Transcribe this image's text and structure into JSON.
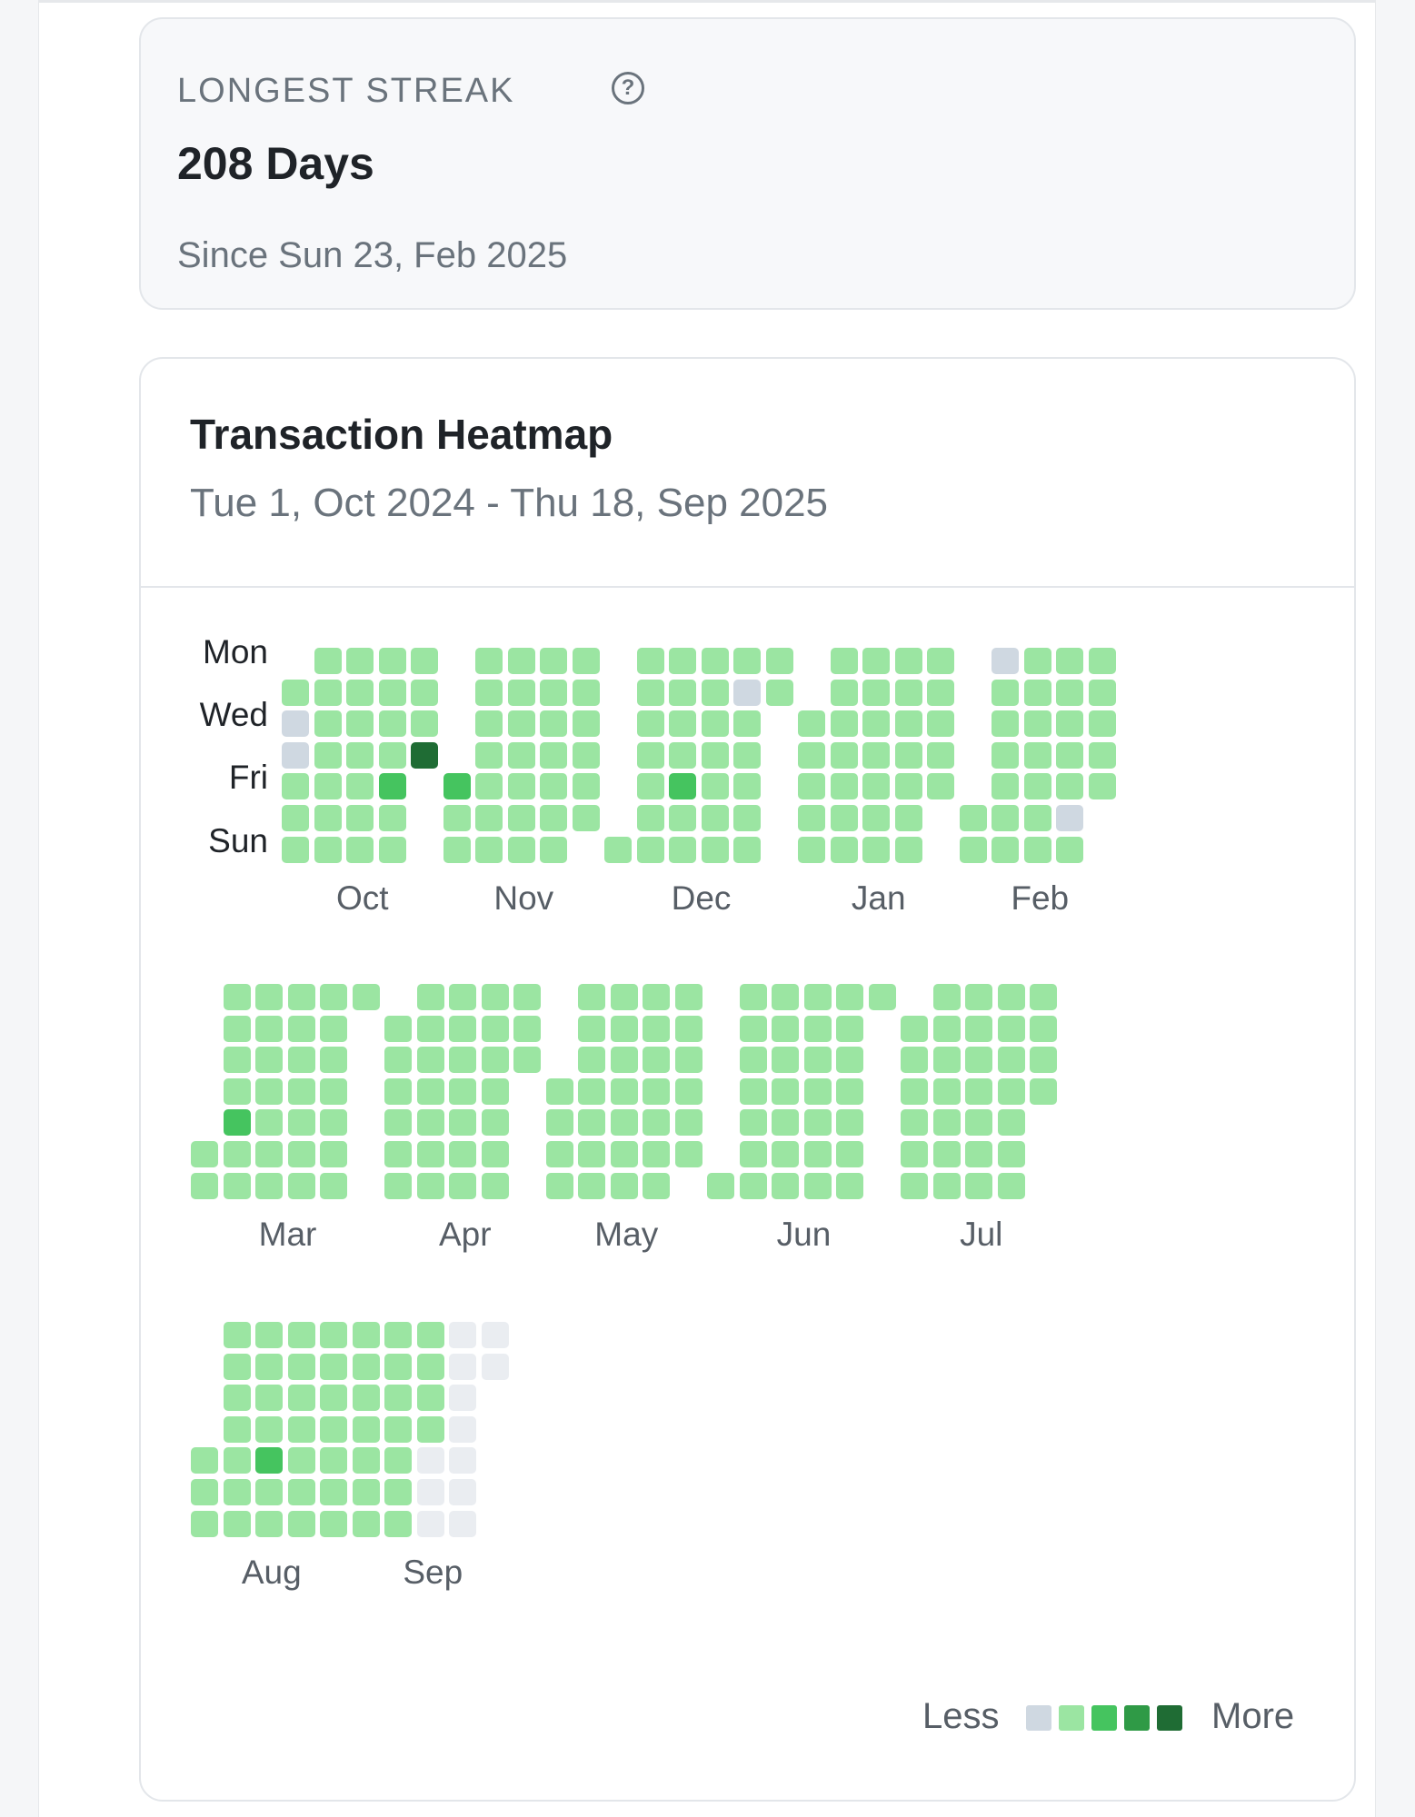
{
  "streak": {
    "label": "LONGEST STREAK",
    "help_icon": "question-circle-icon",
    "value": "208 Days",
    "since": "Since Sun 23, Feb 2025"
  },
  "heatmap": {
    "title": "Transaction Heatmap",
    "range": "Tue 1, Oct 2024 - Thu 18, Sep 2025",
    "day_labels": [
      "Mon",
      "Wed",
      "Fri",
      "Sun"
    ],
    "legend": {
      "less": "Less",
      "more": "More"
    },
    "colors": [
      "#eaedf1",
      "#cfd8e1",
      "#9be5a2",
      "#45c45f",
      "#2f9a46",
      "#1f6c34"
    ],
    "chart_data": {
      "type": "heatmap",
      "levels_note": "levels: 0 = no data, 1 = none, 2..5 = increasing activity",
      "months": [
        {
          "name": "Oct",
          "weeks": [
            [
              null,
              2,
              1,
              1,
              2,
              2,
              2
            ],
            [
              2,
              2,
              2,
              2,
              2,
              2,
              2
            ],
            [
              2,
              2,
              2,
              2,
              2,
              2,
              2
            ],
            [
              2,
              2,
              2,
              2,
              3,
              2,
              2
            ],
            [
              2,
              2,
              2,
              5,
              null,
              null,
              null
            ]
          ]
        },
        {
          "name": "Nov",
          "weeks": [
            [
              null,
              null,
              null,
              null,
              3,
              2,
              2
            ],
            [
              2,
              2,
              2,
              2,
              2,
              2,
              2
            ],
            [
              2,
              2,
              2,
              2,
              2,
              2,
              2
            ],
            [
              2,
              2,
              2,
              2,
              2,
              2,
              2
            ],
            [
              2,
              2,
              2,
              2,
              2,
              2,
              null
            ]
          ]
        },
        {
          "name": "Dec",
          "weeks": [
            [
              null,
              null,
              null,
              null,
              null,
              null,
              2
            ],
            [
              2,
              2,
              2,
              2,
              2,
              2,
              2
            ],
            [
              2,
              2,
              2,
              2,
              3,
              2,
              2
            ],
            [
              2,
              2,
              2,
              2,
              2,
              2,
              2
            ],
            [
              2,
              1,
              2,
              2,
              2,
              2,
              2
            ],
            [
              2,
              2,
              null,
              null,
              null,
              null,
              null
            ]
          ]
        },
        {
          "name": "Jan",
          "weeks": [
            [
              null,
              null,
              2,
              2,
              2,
              2,
              2
            ],
            [
              2,
              2,
              2,
              2,
              2,
              2,
              2
            ],
            [
              2,
              2,
              2,
              2,
              2,
              2,
              2
            ],
            [
              2,
              2,
              2,
              2,
              2,
              2,
              2
            ],
            [
              2,
              2,
              2,
              2,
              2,
              null,
              null
            ]
          ]
        },
        {
          "name": "Feb",
          "weeks": [
            [
              null,
              null,
              null,
              null,
              null,
              2,
              2
            ],
            [
              1,
              2,
              2,
              2,
              2,
              2,
              2
            ],
            [
              2,
              2,
              2,
              2,
              2,
              2,
              2
            ],
            [
              2,
              2,
              2,
              2,
              2,
              1,
              2
            ],
            [
              2,
              2,
              2,
              2,
              2,
              null,
              null
            ]
          ]
        },
        {
          "name": "Mar",
          "weeks": [
            [
              null,
              null,
              null,
              null,
              null,
              2,
              2
            ],
            [
              2,
              2,
              2,
              2,
              3,
              2,
              2
            ],
            [
              2,
              2,
              2,
              2,
              2,
              2,
              2
            ],
            [
              2,
              2,
              2,
              2,
              2,
              2,
              2
            ],
            [
              2,
              2,
              2,
              2,
              2,
              2,
              2
            ],
            [
              2,
              null,
              null,
              null,
              null,
              null,
              null
            ]
          ]
        },
        {
          "name": "Apr",
          "weeks": [
            [
              null,
              2,
              2,
              2,
              2,
              2,
              2
            ],
            [
              2,
              2,
              2,
              2,
              2,
              2,
              2
            ],
            [
              2,
              2,
              2,
              2,
              2,
              2,
              2
            ],
            [
              2,
              2,
              2,
              2,
              2,
              2,
              2
            ],
            [
              2,
              2,
              2,
              null,
              null,
              null,
              null
            ]
          ]
        },
        {
          "name": "May",
          "weeks": [
            [
              null,
              null,
              null,
              2,
              2,
              2,
              2
            ],
            [
              2,
              2,
              2,
              2,
              2,
              2,
              2
            ],
            [
              2,
              2,
              2,
              2,
              2,
              2,
              2
            ],
            [
              2,
              2,
              2,
              2,
              2,
              2,
              2
            ],
            [
              2,
              2,
              2,
              2,
              2,
              2,
              null
            ]
          ]
        },
        {
          "name": "Jun",
          "weeks": [
            [
              null,
              null,
              null,
              null,
              null,
              null,
              2
            ],
            [
              2,
              2,
              2,
              2,
              2,
              2,
              2
            ],
            [
              2,
              2,
              2,
              2,
              2,
              2,
              2
            ],
            [
              2,
              2,
              2,
              2,
              2,
              2,
              2
            ],
            [
              2,
              2,
              2,
              2,
              2,
              2,
              2
            ],
            [
              2,
              null,
              null,
              null,
              null,
              null,
              null
            ]
          ]
        },
        {
          "name": "Jul",
          "weeks": [
            [
              null,
              2,
              2,
              2,
              2,
              2,
              2
            ],
            [
              2,
              2,
              2,
              2,
              2,
              2,
              2
            ],
            [
              2,
              2,
              2,
              2,
              2,
              2,
              2
            ],
            [
              2,
              2,
              2,
              2,
              2,
              2,
              2
            ],
            [
              2,
              2,
              2,
              2,
              null,
              null,
              null
            ]
          ]
        },
        {
          "name": "Aug",
          "weeks": [
            [
              null,
              null,
              null,
              null,
              2,
              2,
              2
            ],
            [
              2,
              2,
              2,
              2,
              2,
              2,
              2
            ],
            [
              2,
              2,
              2,
              2,
              3,
              2,
              2
            ],
            [
              2,
              2,
              2,
              2,
              2,
              2,
              2
            ],
            [
              2,
              2,
              2,
              2,
              2,
              2,
              2
            ]
          ]
        },
        {
          "name": "Sep",
          "weeks": [
            [
              2,
              2,
              2,
              2,
              2,
              2,
              2
            ],
            [
              2,
              2,
              2,
              2,
              2,
              2,
              2
            ],
            [
              2,
              2,
              2,
              2,
              0,
              0,
              0
            ],
            [
              0,
              0,
              0,
              0,
              0,
              0,
              0
            ],
            [
              0,
              0,
              null,
              null,
              null,
              null,
              null
            ]
          ]
        }
      ]
    }
  }
}
